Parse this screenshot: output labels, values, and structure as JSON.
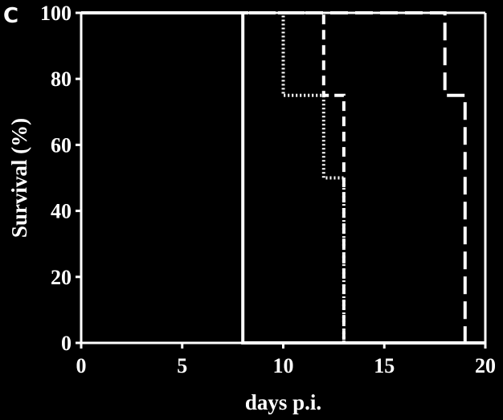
{
  "panel_label": "C",
  "chart_data": {
    "type": "line",
    "step": true,
    "xlabel": "days p.i.",
    "ylabel": "Survival (%)",
    "xlim": [
      0,
      20
    ],
    "ylim": [
      0,
      100
    ],
    "x_ticks": [
      0,
      5,
      10,
      15,
      20
    ],
    "y_ticks": [
      0,
      20,
      40,
      60,
      80,
      100
    ],
    "grid": false,
    "colors": {
      "background": "#000000",
      "foreground": "#ffffff"
    },
    "series": [
      {
        "style": "solid",
        "x": [
          0,
          8,
          8,
          20
        ],
        "y": [
          100,
          100,
          0,
          0
        ]
      },
      {
        "style": "dotted",
        "x": [
          0,
          10,
          10,
          12,
          12,
          13,
          13
        ],
        "y": [
          100,
          100,
          75,
          75,
          50,
          50,
          0
        ]
      },
      {
        "style": "dashed",
        "x": [
          0,
          12,
          12,
          13,
          13
        ],
        "y": [
          100,
          100,
          75,
          75,
          0
        ]
      },
      {
        "style": "longdash",
        "x": [
          0,
          18,
          18,
          19,
          19
        ],
        "y": [
          100,
          100,
          75,
          75,
          0
        ]
      }
    ]
  }
}
